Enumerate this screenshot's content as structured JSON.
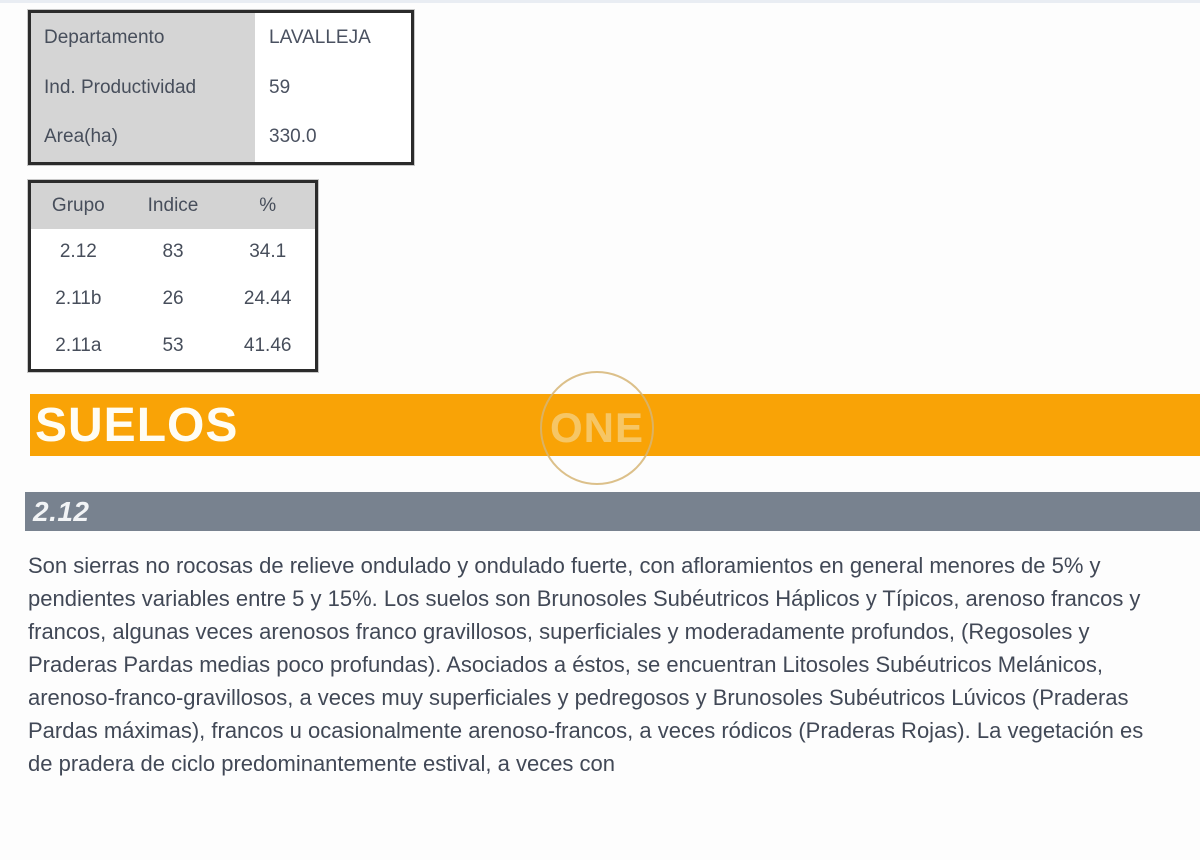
{
  "info_table": {
    "rows": [
      {
        "label": "Departamento",
        "value": "LAVALLEJA"
      },
      {
        "label": "Ind. Productividad",
        "value": "59"
      },
      {
        "label": "Area(ha)",
        "value": "330.0"
      }
    ]
  },
  "grupo_table": {
    "headers": [
      "Grupo",
      "Indice",
      "%"
    ],
    "rows": [
      [
        "2.12",
        "83",
        "34.1"
      ],
      [
        "2.11b",
        "26",
        "24.44"
      ],
      [
        "2.11a",
        "53",
        "41.46"
      ]
    ]
  },
  "section_banner": {
    "title": "SUELOS",
    "color": "#f9a306"
  },
  "watermark": {
    "text": "ONE"
  },
  "subsection": {
    "title": "2.12",
    "color": "#78828f"
  },
  "body_text": "Son sierras no rocosas de relieve ondulado y ondulado fuerte, con afloramientos en general menores de 5% y pendientes variables entre 5 y 15%. Los suelos son Brunosoles Subéutricos Háplicos y Típicos, arenoso francos y francos, algunas veces arenosos franco gravillosos, superficiales y moderadamente profundos, (Regosoles y Praderas Pardas medias poco profundas). Asociados a éstos, se encuentran Litosoles Subéutricos Melánicos, arenoso-franco-gravillosos, a veces muy superficiales y pedregosos y Brunosoles Subéutricos Lúvicos (Praderas Pardas máximas), francos u ocasionalmente arenoso-francos, a veces ródicos (Praderas Rojas). La vegetación es de pradera de ciclo predominantemente estival, a veces con"
}
